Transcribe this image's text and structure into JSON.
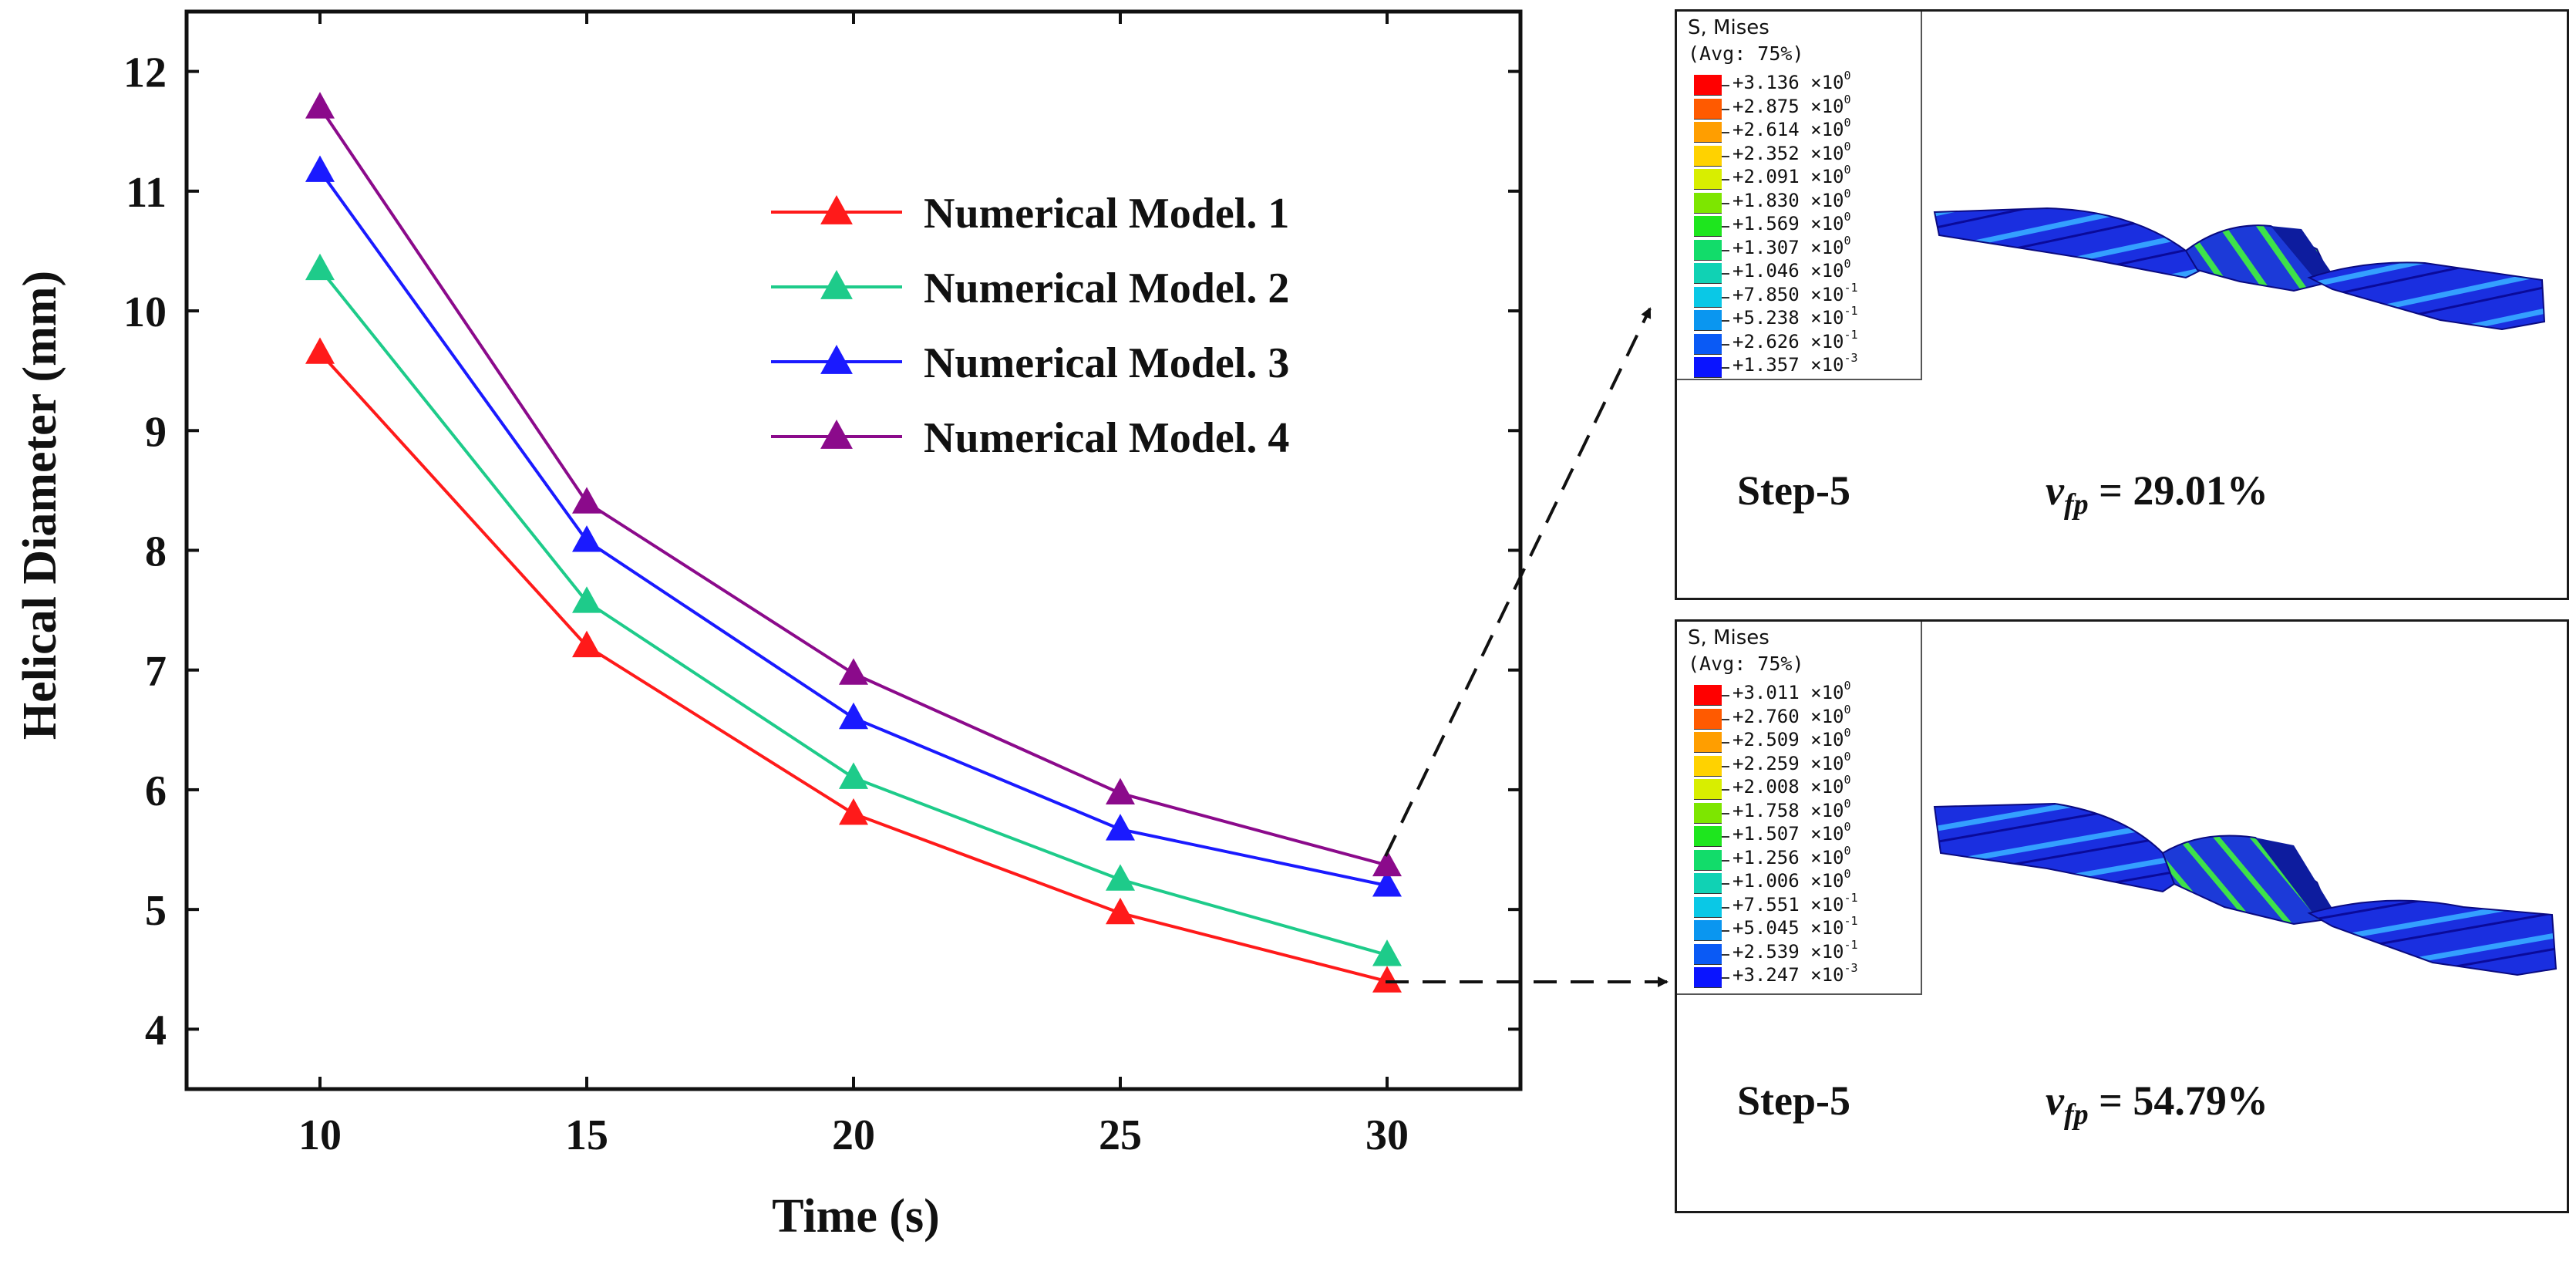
{
  "chart_data": {
    "type": "line",
    "xlabel": "Time (s)",
    "ylabel": "Helical Diameter (mm)",
    "x": [
      10,
      15,
      20,
      25,
      30
    ],
    "xlim": [
      7.5,
      32.5
    ],
    "ylim": [
      3.5,
      12.5
    ],
    "xticks": [
      10,
      15,
      20,
      25,
      30
    ],
    "yticks": [
      4,
      5,
      6,
      7,
      8,
      9,
      10,
      11,
      12
    ],
    "grid": false,
    "legend_position": "top-right",
    "series": [
      {
        "name": "Numerical Model. 1",
        "color": "#ff1a1a",
        "values": [
          9.65,
          7.2,
          5.8,
          4.97,
          4.4
        ]
      },
      {
        "name": "Numerical Model. 2",
        "color": "#1ecb8a",
        "values": [
          10.35,
          7.57,
          6.1,
          5.25,
          4.62
        ]
      },
      {
        "name": "Numerical Model. 3",
        "color": "#1a1aff",
        "values": [
          11.17,
          8.08,
          6.6,
          5.67,
          5.2
        ]
      },
      {
        "name": "Numerical Model. 4",
        "color": "#8b0a8b",
        "values": [
          11.7,
          8.4,
          6.97,
          5.97,
          5.37
        ]
      }
    ]
  },
  "panels": {
    "top": {
      "legend_title_1": "S, Mises",
      "legend_title_2": "(Avg: 75%)",
      "legend_values": [
        "+3.136 ×10",
        "+2.875 ×10",
        "+2.614 ×10",
        "+2.352 ×10",
        "+2.091 ×10",
        "+1.830 ×10",
        "+1.569 ×10",
        "+1.307 ×10",
        "+1.046 ×10",
        "+7.850 ×10",
        "+5.238 ×10",
        "+2.626 ×10",
        "+1.357 ×10"
      ],
      "legend_exponents": [
        "0",
        "0",
        "0",
        "0",
        "0",
        "0",
        "0",
        "0",
        "0",
        "-1",
        "-1",
        "-1",
        "-3"
      ],
      "step": "Step-5",
      "vfp_symbol": "v",
      "vfp_subscript": "fp",
      "vfp_value": " = 29.01%"
    },
    "bottom": {
      "legend_title_1": "S, Mises",
      "legend_title_2": "(Avg: 75%)",
      "legend_values": [
        "+3.011 ×10",
        "+2.760 ×10",
        "+2.509 ×10",
        "+2.259 ×10",
        "+2.008 ×10",
        "+1.758 ×10",
        "+1.507 ×10",
        "+1.256 ×10",
        "+1.006 ×10",
        "+7.551 ×10",
        "+5.045 ×10",
        "+2.539 ×10",
        "+3.247 ×10"
      ],
      "legend_exponents": [
        "0",
        "0",
        "0",
        "0",
        "0",
        "0",
        "0",
        "0",
        "0",
        "-1",
        "-1",
        "-1",
        "-3"
      ],
      "step": "Step-5",
      "vfp_symbol": "v",
      "vfp_subscript": "fp",
      "vfp_value": " = 54.79%"
    }
  },
  "colors": {
    "contour_scale": [
      "#ff0000",
      "#ff5a00",
      "#ff9e00",
      "#ffd200",
      "#d8ee00",
      "#7de600",
      "#1ee61e",
      "#12dc6a",
      "#10d2b4",
      "#0ac8e6",
      "#0a96f0",
      "#0a5af5",
      "#0a14ff"
    ]
  }
}
